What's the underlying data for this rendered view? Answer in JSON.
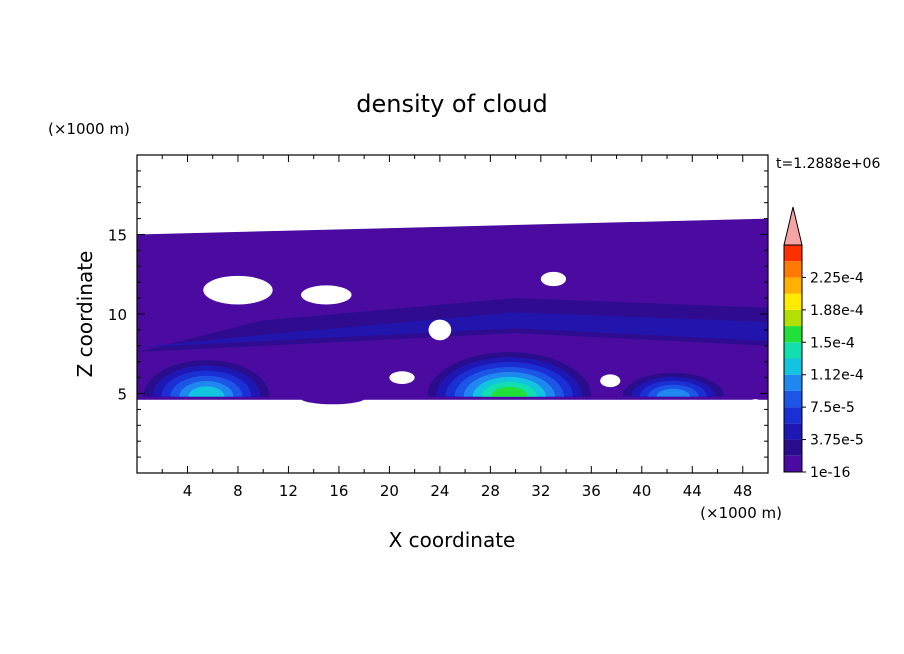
{
  "chart_data": {
    "type": "heatmap",
    "title": "density of cloud",
    "xlabel": "X coordinate",
    "ylabel": "Z coordinate",
    "x_unit": "(×1000 m)",
    "y_unit": "(×1000 m)",
    "time_label": "t=1.2888e+06",
    "xlim": [
      0,
      50
    ],
    "ylim": [
      0,
      20
    ],
    "x_ticks": [
      4,
      8,
      12,
      16,
      20,
      24,
      28,
      32,
      36,
      40,
      44,
      48
    ],
    "y_ticks": [
      5,
      10,
      15
    ],
    "colorbar": {
      "labels": [
        "1e-16",
        "3.75e-5",
        "7.5e-5",
        "1.12e-4",
        "1.5e-4",
        "1.88e-4",
        "2.25e-4"
      ],
      "levels": [
        1e-16,
        1.875e-05,
        3.75e-05,
        5.625e-05,
        7.5e-05,
        9.375e-05,
        0.0001125,
        0.00013125,
        0.00015,
        0.00016875,
        0.0001875,
        0.00020625,
        0.000225,
        0.00024375
      ],
      "colors": [
        "#4b0ba1",
        "#2a0d8c",
        "#1f17b4",
        "#1a30d4",
        "#1d55e6",
        "#1e88f0",
        "#12c4e0",
        "#11dfb0",
        "#22e03a",
        "#b3e000",
        "#ffea00",
        "#ffb000",
        "#ff7a00",
        "#ff3000"
      ],
      "over_color": "#f6a3a3"
    },
    "cloud_layer": {
      "base_z": 4.6,
      "top_z_left": 15,
      "top_z_right": 16
    },
    "cells": [
      {
        "x_center": 5.5,
        "half_width": 5,
        "base_z": 4.8,
        "top_z": 7.1,
        "peak": 0.00012
      },
      {
        "x_center": 29.5,
        "half_width": 6.5,
        "base_z": 4.8,
        "top_z": 7.6,
        "peak": 0.00015
      },
      {
        "x_center": 42.5,
        "half_width": 4,
        "base_z": 4.8,
        "top_z": 6.3,
        "peak": 0.00011
      }
    ],
    "grid": false,
    "legend": "right colorbar"
  }
}
